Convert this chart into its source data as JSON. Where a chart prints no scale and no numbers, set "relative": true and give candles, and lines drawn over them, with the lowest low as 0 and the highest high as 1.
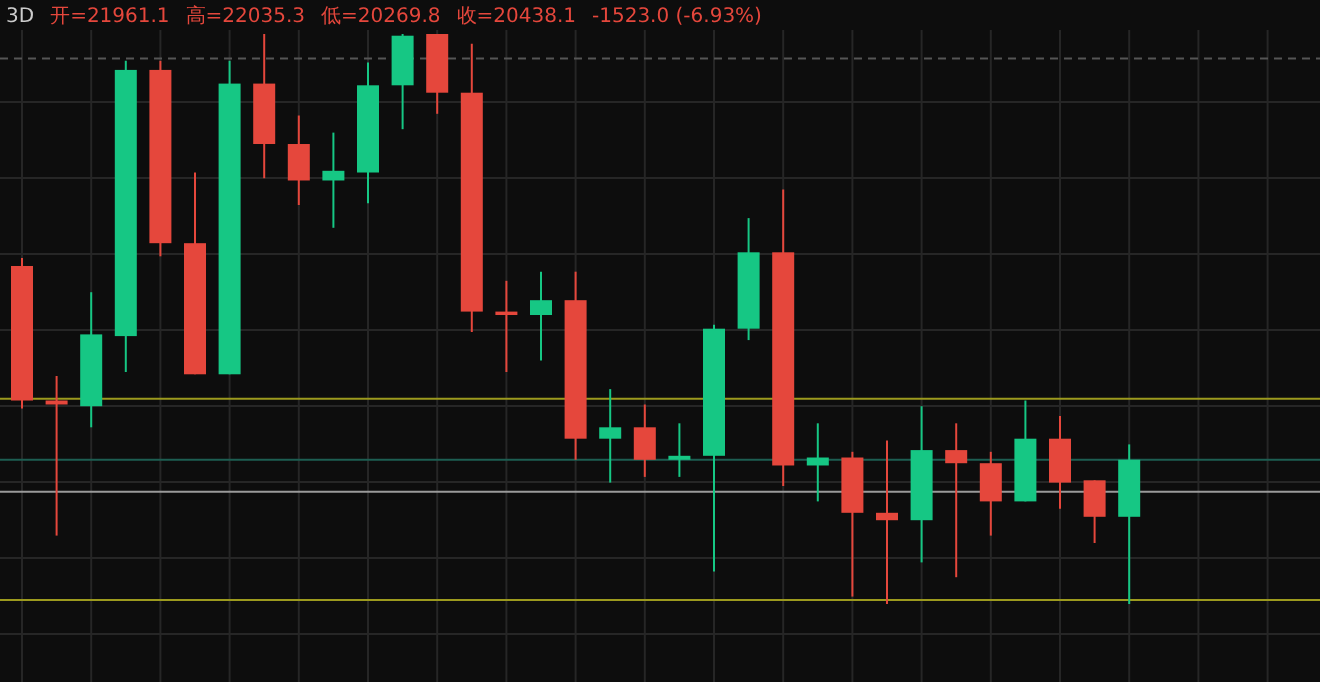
{
  "chart_data": {
    "type": "candlestick",
    "relative": true,
    "title": "3D",
    "annotations": [
      "开=21961.1",
      "高=22035.3",
      "低=20269.8",
      "收=20438.1",
      "-1523.0 (-6.93%)"
    ],
    "categories": [
      null,
      null,
      null,
      null,
      null,
      null,
      null,
      null,
      null,
      null,
      null,
      null,
      null,
      null,
      null,
      null,
      null,
      null,
      null,
      null,
      null,
      null,
      null,
      null,
      null,
      null,
      null,
      null,
      null,
      null,
      null,
      null,
      null,
      null,
      null,
      null,
      null,
      null
    ],
    "ohlc": [
      [
        0.593,
        0.607,
        0.343,
        0.357
      ],
      [
        0.357,
        0.4,
        0.12,
        0.35
      ],
      [
        0.347,
        0.547,
        0.31,
        0.473
      ],
      [
        0.47,
        0.953,
        0.407,
        0.937
      ],
      [
        0.937,
        0.953,
        0.61,
        0.633
      ],
      [
        0.633,
        0.757,
        0.403,
        0.403
      ],
      [
        0.403,
        0.953,
        0.403,
        0.913
      ],
      [
        0.913,
        1,
        0.747,
        0.807
      ],
      [
        0.807,
        0.857,
        0.7,
        0.743
      ],
      [
        0.743,
        0.827,
        0.66,
        0.76
      ],
      [
        0.757,
        0.95,
        0.703,
        0.91
      ],
      [
        0.91,
        1,
        0.833,
        0.997
      ],
      [
        1,
        1,
        0.86,
        0.897
      ],
      [
        0.897,
        0.983,
        0.477,
        0.513
      ],
      [
        0.513,
        0.567,
        0.407,
        0.507
      ],
      [
        0.507,
        0.583,
        0.427,
        0.533
      ],
      [
        0.533,
        0.583,
        0.253,
        0.29
      ],
      [
        0.29,
        0.377,
        0.213,
        0.31
      ],
      [
        0.31,
        0.35,
        0.223,
        0.253
      ],
      [
        0.253,
        0.317,
        0.223,
        0.26
      ],
      [
        0.26,
        0.49,
        0.057,
        0.483
      ],
      [
        0.483,
        0.677,
        0.463,
        0.617
      ],
      [
        0.617,
        0.727,
        0.207,
        0.243
      ],
      [
        0.243,
        0.317,
        0.18,
        0.257
      ],
      [
        0.257,
        0.267,
        0.013,
        0.16
      ],
      [
        0.16,
        0.287,
        0,
        0.147
      ],
      [
        0.147,
        0.347,
        0.073,
        0.27
      ],
      [
        0.27,
        0.317,
        0.047,
        0.247
      ],
      [
        0.247,
        0.267,
        0.12,
        0.18
      ],
      [
        0.18,
        0.357,
        0.18,
        0.29
      ],
      [
        0.29,
        0.33,
        0.167,
        0.213
      ],
      [
        0.217,
        0.217,
        0.107,
        0.153
      ],
      [
        0.153,
        0.28,
        0,
        0.253
      ],
      null,
      null,
      null,
      null,
      null
    ],
    "colors": [
      "#e5473c",
      "#e5473c",
      "#16c784",
      "#16c784",
      "#e5473c",
      "#e5473c",
      "#16c784",
      "#e5473c",
      "#e5473c",
      "#16c784",
      "#16c784",
      "#16c784",
      "#e5473c",
      "#e5473c",
      "#e5473c",
      "#16c784",
      "#e5473c",
      "#16c784",
      "#e5473c",
      "#16c784",
      "#16c784",
      "#16c784",
      "#e5473c",
      "#16c784",
      "#e5473c",
      "#e5473c",
      "#16c784",
      "#e5473c",
      "#e5473c",
      "#16c784",
      "#e5473c",
      "#e5473c",
      "#16c784",
      null,
      null,
      null,
      null,
      null
    ],
    "ref_lines": [
      {
        "axis": "y",
        "value": 0.957,
        "color": "#555555",
        "line_style": "dashed"
      },
      {
        "axis": "y",
        "value": 0.36,
        "color": "#9c9a1e"
      },
      {
        "axis": "y",
        "value": 0.253,
        "color": "#1d5e52"
      },
      {
        "axis": "y",
        "value": 0.197,
        "color": "#9a9a9a"
      },
      {
        "axis": "y",
        "value": 0.007,
        "color": "#9c9a1e"
      }
    ],
    "grid": true
  }
}
